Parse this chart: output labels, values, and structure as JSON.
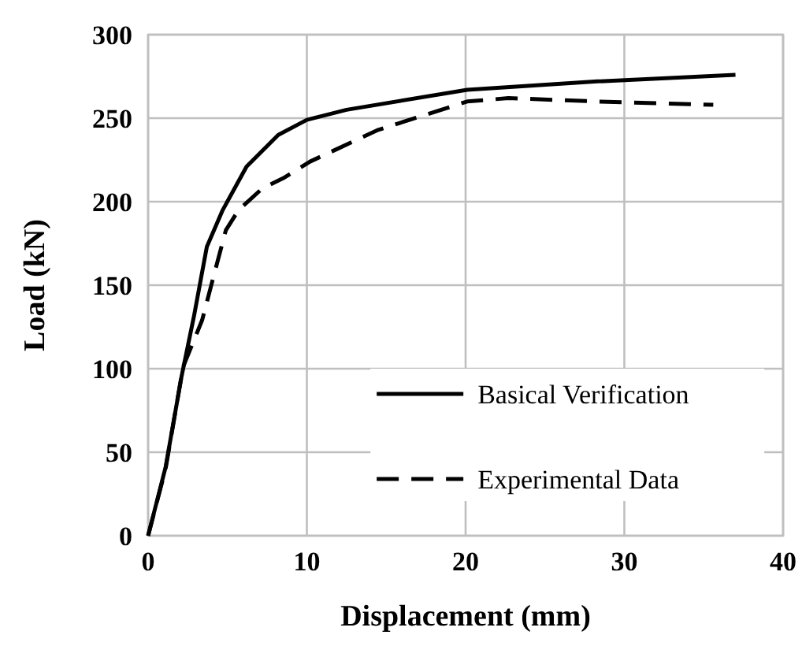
{
  "chart_data": {
    "type": "line",
    "xlabel": "Displacement (mm)",
    "ylabel": "Load (kN)",
    "xlim": [
      0,
      40
    ],
    "ylim": [
      0,
      300
    ],
    "xticks": [
      0,
      10,
      20,
      30,
      40
    ],
    "yticks": [
      0,
      50,
      100,
      150,
      200,
      250,
      300
    ],
    "grid": true,
    "legend": "bottom right",
    "marker": "none",
    "series": [
      {
        "name": "Basical Verification",
        "color": "#000000",
        "line_style": "solid",
        "x": [
          0,
          1.1,
          2.1,
          2.9,
          3.7,
          4.7,
          6.2,
          8.2,
          10,
          12.5,
          20.1,
          28.3,
          37
        ],
        "values": [
          0,
          41,
          95,
          132,
          173,
          195,
          221,
          240,
          249,
          255,
          267,
          272,
          276
        ]
      },
      {
        "name": "Experimental Data",
        "color": "#000000",
        "line_style": "dashed",
        "x": [
          0,
          1.1,
          2.2,
          3.4,
          4.2,
          4.9,
          5.7,
          7.2,
          8.5,
          10.2,
          14.5,
          20.1,
          22.7,
          28.3,
          35.6
        ],
        "values": [
          0,
          40,
          101,
          129,
          158,
          183,
          195,
          208,
          214,
          224,
          243,
          260,
          262,
          260,
          258
        ]
      }
    ]
  }
}
